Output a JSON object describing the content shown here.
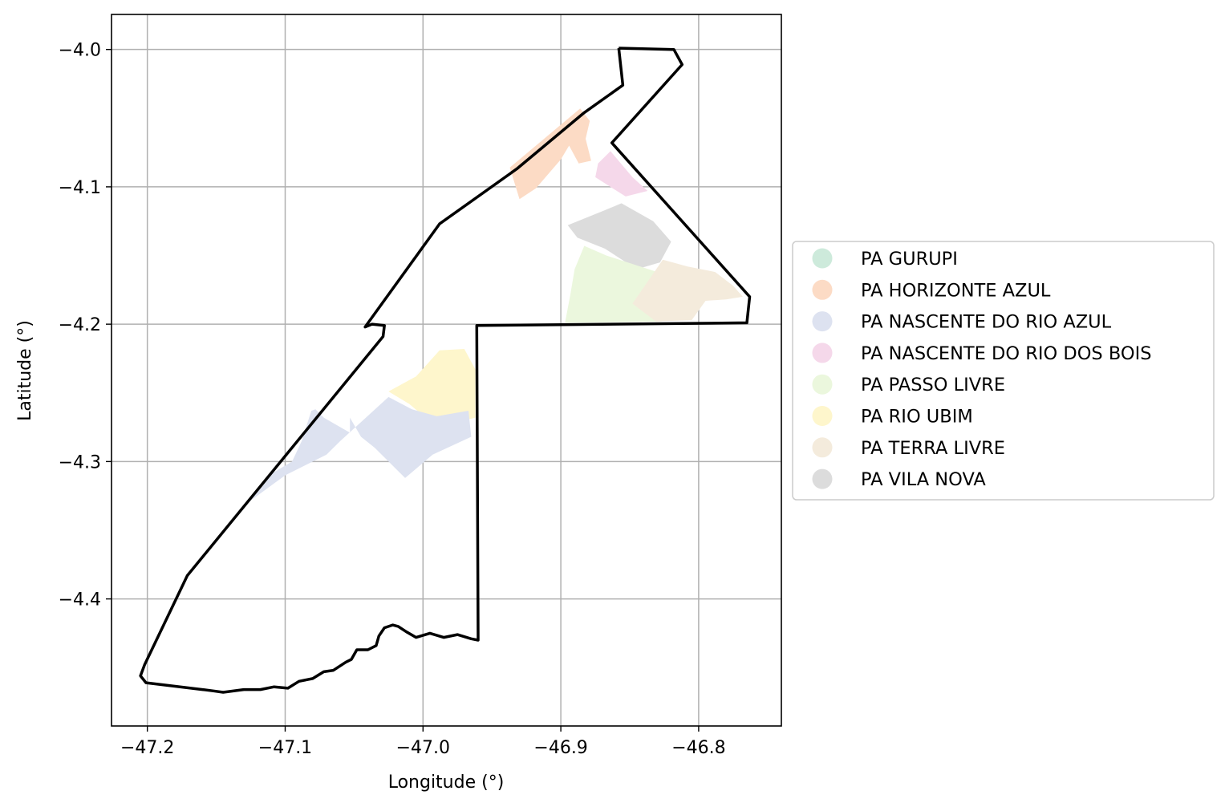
{
  "chart_data": {
    "type": "map",
    "xlabel": "Longitude (°)",
    "ylabel": "Latitude (°)",
    "xlim": [
      -47.226,
      -46.74
    ],
    "ylim": [
      -4.4925,
      -3.9745
    ],
    "grid": true,
    "x_ticks": [
      {
        "value": -47.2,
        "label": "−47.2"
      },
      {
        "value": -47.1,
        "label": "−47.1"
      },
      {
        "value": -47.0,
        "label": "−47.0"
      },
      {
        "value": -46.9,
        "label": "−46.9"
      },
      {
        "value": -46.8,
        "label": "−46.8"
      }
    ],
    "y_ticks": [
      {
        "value": -4.0,
        "label": "−4.0"
      },
      {
        "value": -4.1,
        "label": "−4.1"
      },
      {
        "value": -4.2,
        "label": "−4.2"
      },
      {
        "value": -4.3,
        "label": "−4.3"
      },
      {
        "value": -4.4,
        "label": "−4.4"
      }
    ],
    "legend": {
      "placement": "center-right outside",
      "entries": [
        {
          "name": "PA GURUPI",
          "color": "#cdeadb"
        },
        {
          "name": "PA HORIZONTE AZUL",
          "color": "#fcdbc5"
        },
        {
          "name": "PA NASCENTE DO RIO AZUL",
          "color": "#dde2f0"
        },
        {
          "name": "PA NASCENTE DO RIO DOS BOIS",
          "color": "#f5d8ea"
        },
        {
          "name": "PA PASSO LIVRE",
          "color": "#ebf7dd"
        },
        {
          "name": "PA RIO UBIM",
          "color": "#fef6cc"
        },
        {
          "name": "PA TERRA LIVRE",
          "color": "#f4ebdc"
        },
        {
          "name": "PA VILA NOVA",
          "color": "#dcdcdc"
        }
      ]
    },
    "boundary": {
      "stroke": "#000000",
      "coords": [
        [
          -46.858,
          -3.999
        ],
        [
          -46.818,
          -4.0
        ],
        [
          -46.812,
          -4.011
        ],
        [
          -46.863,
          -4.068
        ],
        [
          -46.763,
          -4.18
        ],
        [
          -46.765,
          -4.199
        ],
        [
          -46.961,
          -4.201
        ],
        [
          -46.96,
          -4.43
        ],
        [
          -46.965,
          -4.429
        ],
        [
          -46.975,
          -4.426
        ],
        [
          -46.985,
          -4.428
        ],
        [
          -46.995,
          -4.425
        ],
        [
          -47.005,
          -4.428
        ],
        [
          -47.012,
          -4.424
        ],
        [
          -47.018,
          -4.42
        ],
        [
          -47.022,
          -4.419
        ],
        [
          -47.028,
          -4.421
        ],
        [
          -47.032,
          -4.427
        ],
        [
          -47.034,
          -4.434
        ],
        [
          -47.04,
          -4.437
        ],
        [
          -47.048,
          -4.437
        ],
        [
          -47.052,
          -4.444
        ],
        [
          -47.056,
          -4.446
        ],
        [
          -47.065,
          -4.452
        ],
        [
          -47.072,
          -4.453
        ],
        [
          -47.08,
          -4.458
        ],
        [
          -47.09,
          -4.46
        ],
        [
          -47.098,
          -4.465
        ],
        [
          -47.108,
          -4.464
        ],
        [
          -47.118,
          -4.466
        ],
        [
          -47.13,
          -4.466
        ],
        [
          -47.145,
          -4.468
        ],
        [
          -47.152,
          -4.467
        ],
        [
          -47.16,
          -4.466
        ],
        [
          -47.201,
          -4.461
        ],
        [
          -47.205,
          -4.456
        ],
        [
          -47.202,
          -4.448
        ],
        [
          -47.171,
          -4.383
        ],
        [
          -47.029,
          -4.209
        ],
        [
          -47.028,
          -4.201
        ],
        [
          -47.037,
          -4.2
        ],
        [
          -47.042,
          -4.202
        ],
        [
          -46.988,
          -4.127
        ],
        [
          -46.932,
          -4.087
        ],
        [
          -46.883,
          -4.046
        ],
        [
          -46.855,
          -4.026
        ],
        [
          -46.858,
          -3.999
        ]
      ]
    },
    "regions": [
      {
        "name": "PA HORIZONTE AZUL",
        "color": "#fcdbc5",
        "coords": [
          [
            -46.937,
            -4.086
          ],
          [
            -46.886,
            -4.043
          ],
          [
            -46.879,
            -4.052
          ],
          [
            -46.882,
            -4.065
          ],
          [
            -46.878,
            -4.081
          ],
          [
            -46.887,
            -4.083
          ],
          [
            -46.894,
            -4.07
          ],
          [
            -46.9,
            -4.08
          ],
          [
            -46.918,
            -4.101
          ],
          [
            -46.93,
            -4.109
          ],
          [
            -46.937,
            -4.086
          ]
        ]
      },
      {
        "name": "PA NASCENTE DO RIO DOS BOIS",
        "color": "#f5d8ea",
        "coords": [
          [
            -46.864,
            -4.074
          ],
          [
            -46.848,
            -4.093
          ],
          [
            -46.837,
            -4.103
          ],
          [
            -46.853,
            -4.107
          ],
          [
            -46.861,
            -4.102
          ],
          [
            -46.875,
            -4.093
          ],
          [
            -46.873,
            -4.083
          ],
          [
            -46.864,
            -4.074
          ]
        ]
      },
      {
        "name": "PA VILA NOVA",
        "color": "#dcdcdc",
        "coords": [
          [
            -46.895,
            -4.128
          ],
          [
            -46.868,
            -4.117
          ],
          [
            -46.856,
            -4.112
          ],
          [
            -46.833,
            -4.125
          ],
          [
            -46.82,
            -4.14
          ],
          [
            -46.828,
            -4.155
          ],
          [
            -46.845,
            -4.16
          ],
          [
            -46.868,
            -4.145
          ],
          [
            -46.888,
            -4.137
          ],
          [
            -46.895,
            -4.128
          ]
        ]
      },
      {
        "name": "PA PASSO LIVRE",
        "color": "#ebf7dd",
        "coords": [
          [
            -46.883,
            -4.143
          ],
          [
            -46.867,
            -4.15
          ],
          [
            -46.83,
            -4.162
          ],
          [
            -46.812,
            -4.18
          ],
          [
            -46.827,
            -4.198
          ],
          [
            -46.897,
            -4.199
          ],
          [
            -46.893,
            -4.178
          ],
          [
            -46.89,
            -4.16
          ],
          [
            -46.883,
            -4.143
          ]
        ]
      },
      {
        "name": "PA TERRA LIVRE",
        "color": "#f4ebdc",
        "coords": [
          [
            -46.826,
            -4.153
          ],
          [
            -46.808,
            -4.158
          ],
          [
            -46.788,
            -4.162
          ],
          [
            -46.775,
            -4.172
          ],
          [
            -46.768,
            -4.18
          ],
          [
            -46.78,
            -4.182
          ],
          [
            -46.795,
            -4.183
          ],
          [
            -46.805,
            -4.197
          ],
          [
            -46.831,
            -4.198
          ],
          [
            -46.848,
            -4.185
          ],
          [
            -46.826,
            -4.153
          ]
        ]
      },
      {
        "name": "PA RIO UBIM",
        "color": "#fef6cc",
        "coords": [
          [
            -46.988,
            -4.219
          ],
          [
            -46.97,
            -4.218
          ],
          [
            -46.962,
            -4.233
          ],
          [
            -46.962,
            -4.268
          ],
          [
            -46.99,
            -4.275
          ],
          [
            -47.01,
            -4.258
          ],
          [
            -47.025,
            -4.249
          ],
          [
            -47.005,
            -4.238
          ],
          [
            -46.988,
            -4.219
          ]
        ]
      },
      {
        "name": "PA NASCENTE DO RIO AZUL",
        "color": "#dde2f0",
        "coords": [
          [
            -47.025,
            -4.253
          ],
          [
            -47.008,
            -4.262
          ],
          [
            -46.99,
            -4.267
          ],
          [
            -46.967,
            -4.263
          ],
          [
            -46.965,
            -4.282
          ],
          [
            -46.993,
            -4.295
          ],
          [
            -47.013,
            -4.312
          ],
          [
            -47.035,
            -4.29
          ],
          [
            -47.045,
            -4.282
          ],
          [
            -47.053,
            -4.268
          ],
          [
            -47.053,
            -4.279
          ],
          [
            -47.072,
            -4.268
          ],
          [
            -47.078,
            -4.262
          ],
          [
            -47.081,
            -4.263
          ],
          [
            -47.088,
            -4.285
          ],
          [
            -47.095,
            -4.3
          ],
          [
            -47.112,
            -4.31
          ],
          [
            -47.13,
            -4.332
          ],
          [
            -47.1,
            -4.31
          ],
          [
            -47.08,
            -4.3
          ],
          [
            -47.07,
            -4.295
          ],
          [
            -47.06,
            -4.285
          ],
          [
            -47.025,
            -4.253
          ]
        ]
      }
    ]
  }
}
